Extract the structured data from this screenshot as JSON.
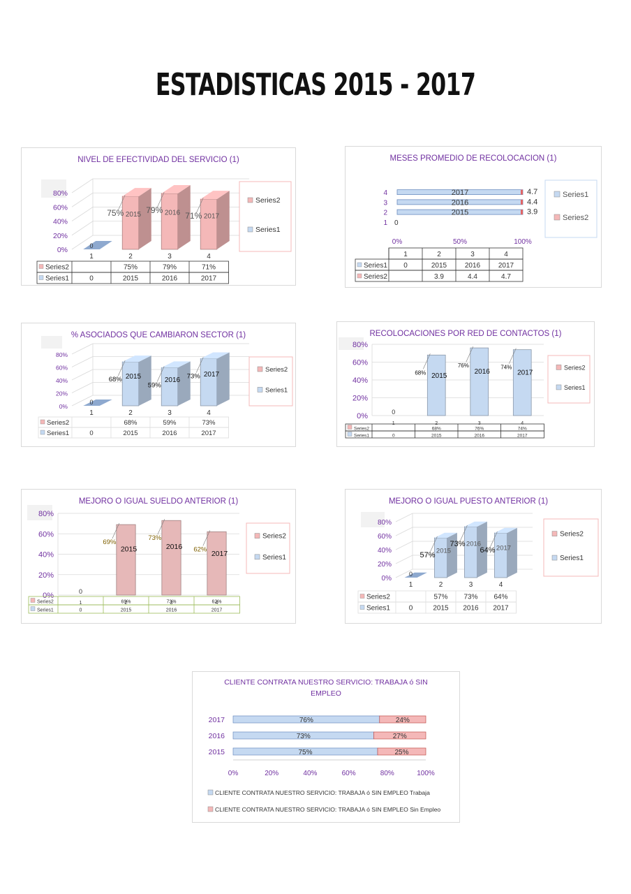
{
  "page": {
    "title": "ESTADISTICAS 2015 - 2017"
  },
  "chart_data": [
    {
      "type": "bar",
      "title": "NIVEL DE EFECTIVIDAD DEL SERVICIO (1)",
      "categories": [
        "1",
        "2",
        "3",
        "4"
      ],
      "y_ticks": [
        "0%",
        "20%",
        "40%",
        "60%",
        "80%"
      ],
      "ylim": [
        0,
        0.8
      ],
      "legend": [
        "Series2",
        "Series1"
      ],
      "legend_position": "right",
      "bar_labels": [
        "0",
        "2015",
        "2016",
        "2017"
      ],
      "point_labels": [
        "",
        "75%",
        "79%",
        "71%"
      ],
      "table": [
        {
          "name": "Series2",
          "cells": [
            "",
            "75%",
            "79%",
            "71%"
          ]
        },
        {
          "name": "Series1",
          "cells": [
            "0",
            "2015",
            "2016",
            "2017"
          ]
        }
      ],
      "colors": {
        "bar": "#f4b8b8",
        "accent": "#7030a0"
      }
    },
    {
      "type": "bar",
      "orientation": "horizontal",
      "title": "MESES PROMEDIO DE RECOLOCACION (1)",
      "categories": [
        "1",
        "2",
        "3",
        "4"
      ],
      "x_ticks": [
        "0%",
        "50%",
        "100%"
      ],
      "legend": [
        "Series1",
        "Series2"
      ],
      "legend_position": "right",
      "bar_labels": [
        "0",
        "2015",
        "2016",
        "2017"
      ],
      "value_labels": [
        "0",
        "3.9",
        "4.4",
        "4.7"
      ],
      "table": [
        {
          "name": "Series1",
          "cells": [
            "0",
            "2015",
            "2016",
            "2017"
          ]
        },
        {
          "name": "Series2",
          "cells": [
            "",
            "3.9",
            "4.4",
            "4.7"
          ]
        }
      ],
      "colors": {
        "bar": "#c5d9f1",
        "accent": "#7030a0"
      }
    },
    {
      "type": "bar",
      "title": "% ASOCIADOS QUE CAMBIARON SECTOR (1)",
      "categories": [
        "1",
        "2",
        "3",
        "4"
      ],
      "y_ticks": [
        "0%",
        "20%",
        "40%",
        "60%",
        "80%"
      ],
      "ylim": [
        0,
        0.8
      ],
      "legend": [
        "Series2",
        "Series1"
      ],
      "legend_position": "right",
      "bar_labels": [
        "0",
        "2015",
        "2016",
        "2017"
      ],
      "point_labels": [
        "",
        "68%",
        "59%",
        "73%"
      ],
      "table": [
        {
          "name": "Series2",
          "cells": [
            "",
            "68%",
            "59%",
            "73%"
          ]
        },
        {
          "name": "Series1",
          "cells": [
            "0",
            "2015",
            "2016",
            "2017"
          ]
        }
      ],
      "colors": {
        "bar": "#c5d9f1",
        "accent": "#7030a0"
      }
    },
    {
      "type": "bar",
      "title": "RECOLOCACIONES POR RED DE CONTACTOS (1)",
      "categories": [
        "1",
        "2",
        "3",
        "4"
      ],
      "y_ticks": [
        "0%",
        "20%",
        "40%",
        "60%",
        "80%"
      ],
      "ylim": [
        0,
        0.8
      ],
      "legend": [
        "Series2",
        "Series1"
      ],
      "legend_position": "right",
      "bar_labels": [
        "0",
        "2015",
        "2016",
        "2017"
      ],
      "point_labels": [
        "",
        "68%",
        "76%",
        "74%"
      ],
      "table": [
        {
          "name": "Series2",
          "cells": [
            "",
            "68%",
            "76%",
            "74%"
          ]
        },
        {
          "name": "Series1",
          "cells": [
            "0",
            "2015",
            "2016",
            "2017"
          ]
        }
      ],
      "colors": {
        "bar": "#c5d9f1",
        "accent": "#7030a0"
      }
    },
    {
      "type": "bar",
      "title": "MEJORO O IGUAL SUELDO ANTERIOR (1)",
      "categories": [
        "1",
        "2",
        "3",
        "4"
      ],
      "y_ticks": [
        "0%",
        "20%",
        "40%",
        "60%",
        "80%"
      ],
      "ylim": [
        0,
        0.8
      ],
      "legend": [
        "Series2",
        "Series1"
      ],
      "legend_position": "right",
      "bar_labels": [
        "0",
        "2015",
        "2016",
        "2017"
      ],
      "point_labels": [
        "",
        "69%",
        "73%",
        "62%"
      ],
      "table": [
        {
          "name": "Series2",
          "cells": [
            "",
            "69%",
            "73%",
            "62%"
          ]
        },
        {
          "name": "Series1",
          "cells": [
            "0",
            "2015",
            "2016",
            "2017"
          ]
        }
      ],
      "colors": {
        "bar": "#e6b8b8",
        "accent": "#7030a0"
      }
    },
    {
      "type": "bar",
      "title": "MEJORO O IGUAL PUESTO ANTERIOR (1)",
      "categories": [
        "1",
        "2",
        "3",
        "4"
      ],
      "y_ticks": [
        "0%",
        "20%",
        "40%",
        "60%",
        "80%"
      ],
      "ylim": [
        0,
        0.8
      ],
      "legend": [
        "Series2",
        "Series1"
      ],
      "legend_position": "right",
      "bar_labels": [
        "0",
        "2015",
        "2016",
        "2017"
      ],
      "point_labels": [
        "",
        "57%",
        "73%",
        "64%"
      ],
      "table": [
        {
          "name": "Series2",
          "cells": [
            "",
            "57%",
            "73%",
            "64%"
          ]
        },
        {
          "name": "Series1",
          "cells": [
            "0",
            "2015",
            "2016",
            "2017"
          ]
        }
      ],
      "colors": {
        "bar": "#c5d9f1",
        "accent": "#7030a0"
      }
    },
    {
      "type": "bar",
      "orientation": "horizontal",
      "stacked": "percent",
      "title": "CLIENTE CONTRATA NUESTRO SERVICIO: TRABAJA ó SIN EMPLEO",
      "categories": [
        "2017",
        "2016",
        "2015"
      ],
      "x_ticks": [
        "0%",
        "20%",
        "40%",
        "60%",
        "80%",
        "100%"
      ],
      "xlim": [
        0,
        100
      ],
      "series": [
        {
          "name": "CLIENTE CONTRATA NUESTRO SERVICIO: TRABAJA ó SIN EMPLEO Trabaja",
          "values": [
            76,
            73,
            75
          ],
          "labels": [
            "76%",
            "73%",
            "75%"
          ]
        },
        {
          "name": "CLIENTE CONTRATA NUESTRO SERVICIO: TRABAJA ó SIN EMPLEO Sin Empleo",
          "values": [
            24,
            27,
            25
          ],
          "labels": [
            "24%",
            "27%",
            "25%"
          ]
        }
      ],
      "legend_position": "bottom",
      "colors": {
        "trabaja": "#c5d9f1",
        "sin_empleo": "#f4b8b8",
        "accent": "#7030a0"
      }
    }
  ]
}
